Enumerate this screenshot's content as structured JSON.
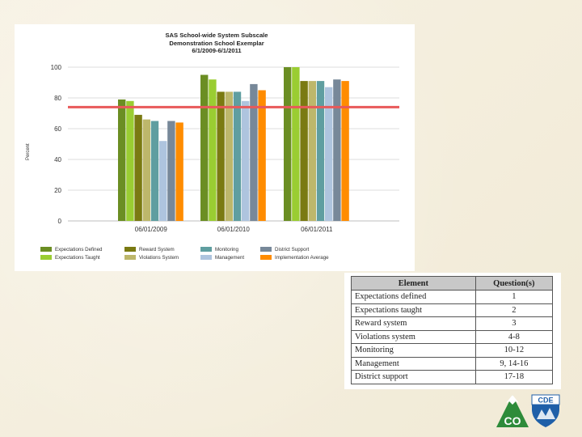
{
  "chart_data": {
    "type": "bar",
    "title": [
      "SAS School-wide System Subscale",
      "Demonstration School Exemplar",
      "6/1/2009-6/1/2011"
    ],
    "ylabel": "Percent",
    "xlabel": "",
    "ylim": [
      0,
      100
    ],
    "yticks": [
      0,
      20,
      40,
      60,
      80,
      100
    ],
    "grid": true,
    "legend_position": "bottom",
    "categories": [
      "06/01/2009",
      "06/01/2010",
      "06/01/2011"
    ],
    "reference_line": {
      "value": 74,
      "color": "#e8595a"
    },
    "series": [
      {
        "name": "Expectations Defined",
        "color": "#6b8e23",
        "values": [
          79,
          95,
          100
        ]
      },
      {
        "name": "Expectations Taught",
        "color": "#9acd32",
        "values": [
          78,
          92,
          100
        ]
      },
      {
        "name": "Reward System",
        "color": "#7a7a12",
        "values": [
          69,
          84,
          91
        ]
      },
      {
        "name": "Violations System",
        "color": "#bdb76b",
        "values": [
          66,
          84,
          91
        ]
      },
      {
        "name": "Monitoring",
        "color": "#5f9ea0",
        "values": [
          65,
          84,
          91
        ]
      },
      {
        "name": "Management",
        "color": "#aec4de",
        "values": [
          52,
          78,
          87
        ]
      },
      {
        "name": "District Support",
        "color": "#778899",
        "values": [
          65,
          89,
          92
        ]
      },
      {
        "name": "Implementation Average",
        "color": "#ff8c00",
        "values": [
          64,
          85,
          91
        ]
      }
    ]
  },
  "elements_table": {
    "headers": [
      "Element",
      "Question(s)"
    ],
    "rows": [
      [
        "Expectations defined",
        "1"
      ],
      [
        "Expectations taught",
        "2"
      ],
      [
        "Reward system",
        "3"
      ],
      [
        "Violations system",
        "4-8"
      ],
      [
        "Monitoring",
        "10-12"
      ],
      [
        "Management",
        "9, 14-16"
      ],
      [
        "District support",
        "17-18"
      ]
    ]
  },
  "logo": {
    "top_text": "CDE",
    "bottom_text": "CO",
    "green": "#2e8b3a",
    "blue": "#1f5fa8"
  }
}
